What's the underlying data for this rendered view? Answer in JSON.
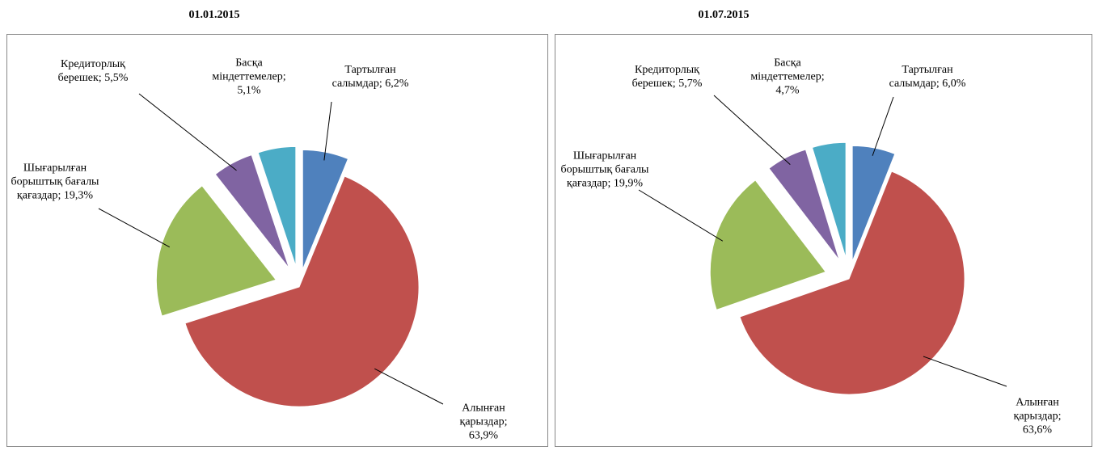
{
  "chart_data": [
    {
      "type": "pie",
      "title": "01.01.2015",
      "categories": [
        "Тартылған салымдар",
        "Алынған қарыздар",
        "Шығарылған борыштық бағалы қағаздар",
        "Кредиторлық берешек",
        "Басқа міндеттемелер"
      ],
      "values": [
        6.2,
        63.9,
        19.3,
        5.5,
        5.1
      ],
      "value_labels": [
        "6,2%",
        "63,9%",
        "19,3%",
        "5,5%",
        "5,1%"
      ],
      "label_separator": "; ",
      "colors": [
        "#4f81bd",
        "#c0504d",
        "#9bbb59",
        "#8064a2",
        "#4bacc6"
      ]
    },
    {
      "type": "pie",
      "title": "01.07.2015",
      "categories": [
        "Тартылған салымдар",
        "Алынған қарыздар",
        "Шығарылған борыштық бағалы қағаздар",
        "Кредиторлық берешек",
        "Басқа міндеттемелер"
      ],
      "values": [
        6.0,
        63.6,
        19.9,
        5.7,
        4.7
      ],
      "value_labels": [
        "6,0%",
        "63,6%",
        "19,9%",
        "5,7%",
        "4,7%"
      ],
      "label_separator": "; ",
      "colors": [
        "#4f81bd",
        "#c0504d",
        "#9bbb59",
        "#8064a2",
        "#4bacc6"
      ]
    }
  ]
}
